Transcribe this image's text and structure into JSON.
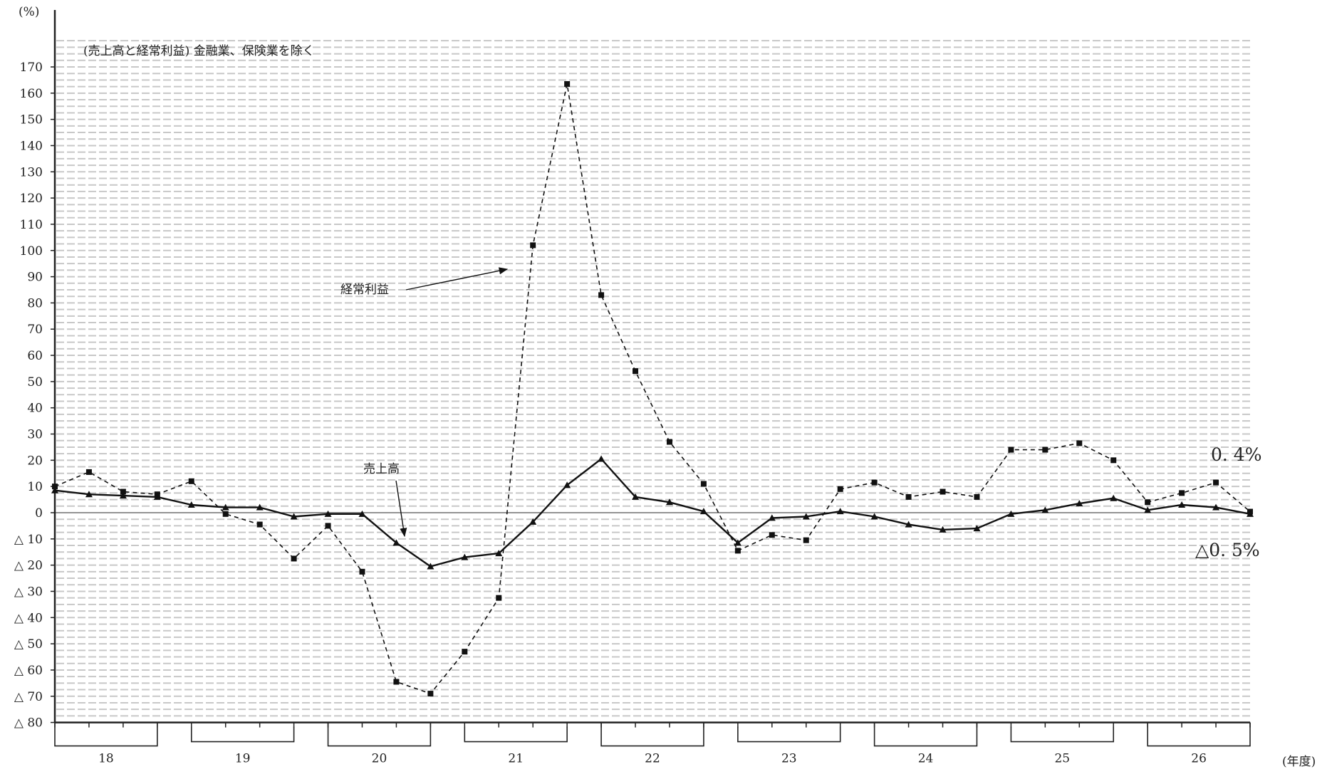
{
  "chart_data": {
    "type": "line",
    "title": "(売上高と経常利益) 金融業、保険業を除く",
    "ylabel": "(%)",
    "xlabel": "(年度)",
    "ylim": [
      -80,
      170
    ],
    "ytick_step": 10,
    "yticks": [
      {
        "value": 170,
        "label": "170"
      },
      {
        "value": 160,
        "label": "160"
      },
      {
        "value": 150,
        "label": "150"
      },
      {
        "value": 140,
        "label": "140"
      },
      {
        "value": 130,
        "label": "130"
      },
      {
        "value": 120,
        "label": "120"
      },
      {
        "value": 110,
        "label": "110"
      },
      {
        "value": 100,
        "label": "100"
      },
      {
        "value": 90,
        "label": "90"
      },
      {
        "value": 80,
        "label": "80"
      },
      {
        "value": 70,
        "label": "70"
      },
      {
        "value": 60,
        "label": "60"
      },
      {
        "value": 50,
        "label": "50"
      },
      {
        "value": 40,
        "label": "40"
      },
      {
        "value": 30,
        "label": "30"
      },
      {
        "value": 20,
        "label": "20"
      },
      {
        "value": 10,
        "label": "10"
      },
      {
        "value": 0,
        "label": "0"
      },
      {
        "value": -10,
        "label": "△ 10"
      },
      {
        "value": -20,
        "label": "△ 20"
      },
      {
        "value": -30,
        "label": "△ 30"
      },
      {
        "value": -40,
        "label": "△ 40"
      },
      {
        "value": -50,
        "label": "△ 50"
      },
      {
        "value": -60,
        "label": "△ 60"
      },
      {
        "value": -70,
        "label": "△ 70"
      },
      {
        "value": -80,
        "label": "△ 80"
      }
    ],
    "fiscal_years": [
      "18",
      "19",
      "20",
      "21",
      "22",
      "23",
      "24",
      "25",
      "26"
    ],
    "quarters_per_year": 4,
    "grid": true,
    "series": [
      {
        "name": "経常利益",
        "style": "dashed",
        "marker": "square",
        "values": [
          10.0,
          15.5,
          8.0,
          7.0,
          12.0,
          -0.5,
          -4.5,
          -17.5,
          -5.0,
          -22.5,
          -64.5,
          -69.0,
          -53.0,
          -32.5,
          102.0,
          163.5,
          83.0,
          54.0,
          27.0,
          11.0,
          -14.5,
          -8.5,
          -10.5,
          9.0,
          11.5,
          6.0,
          8.0,
          6.0,
          24.0,
          24.0,
          26.5,
          20.0,
          4.0,
          7.5,
          11.5,
          0.4
        ]
      },
      {
        "name": "売上高",
        "style": "solid",
        "marker": "triangle",
        "values": [
          8.5,
          7.0,
          6.5,
          6.0,
          3.0,
          2.0,
          2.0,
          -1.5,
          -0.5,
          -0.5,
          -11.5,
          -20.5,
          -17.0,
          -15.5,
          -3.5,
          10.5,
          20.5,
          6.0,
          4.0,
          0.5,
          -11.5,
          -2.0,
          -1.5,
          0.5,
          -1.5,
          -4.5,
          -6.5,
          -6.0,
          -0.5,
          1.0,
          3.5,
          5.5,
          1.0,
          3.0,
          2.0,
          -0.5
        ]
      }
    ],
    "annotations": [
      {
        "text": "経常利益",
        "target_series": "経常利益"
      },
      {
        "text": "売上高",
        "target_series": "売上高"
      }
    ],
    "end_labels": {
      "profit": "0. 4%",
      "sales": "△0. 5%"
    }
  }
}
